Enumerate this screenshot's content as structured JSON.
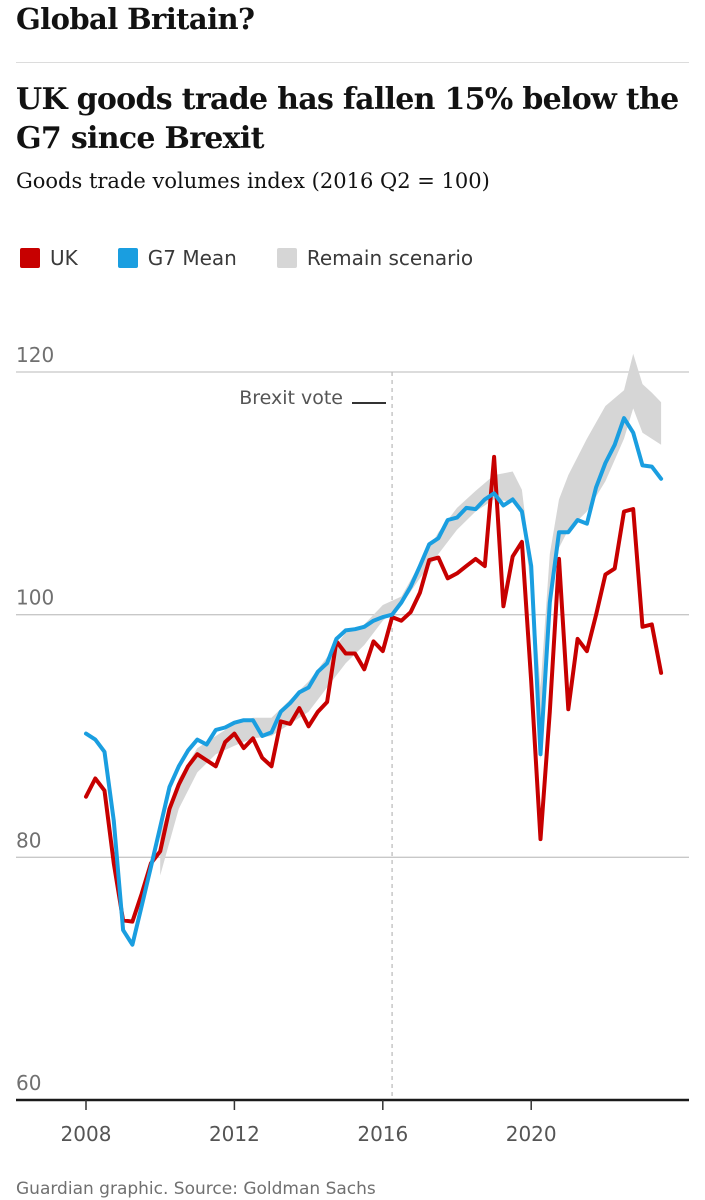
{
  "header": {
    "kicker": "Global Britain?",
    "title": "UK goods trade has fallen 15% below the G7 since Brexit",
    "subtitle": "Goods trade volumes index (2016 Q2 = 100)"
  },
  "legend": [
    {
      "label": "UK",
      "color": "#c70000"
    },
    {
      "label": "G7 Mean",
      "color": "#1a9ee0"
    },
    {
      "label": "Remain scenario",
      "color": "#d6d6d6"
    }
  ],
  "footer": "Guardian graphic. Source: Goldman Sachs",
  "chart_data": {
    "type": "line",
    "ylim": [
      60,
      120
    ],
    "xlim": [
      2007.5,
      2023.6
    ],
    "y_ticks": [
      {
        "value": 60,
        "label": "60"
      },
      {
        "value": 80,
        "label": "80"
      },
      {
        "value": 100,
        "label": "100"
      },
      {
        "value": 120,
        "label": "120"
      }
    ],
    "x_ticks": [
      {
        "value": 2008,
        "label": "2008"
      },
      {
        "value": 2012,
        "label": "2012"
      },
      {
        "value": 2016,
        "label": "2016"
      },
      {
        "value": 2020,
        "label": "2020"
      }
    ],
    "annotation": {
      "label": "Brexit vote",
      "x": 2016.25
    },
    "series": [
      {
        "name": "UK",
        "color": "#c70000",
        "points": [
          [
            2008.0,
            85.0
          ],
          [
            2008.25,
            86.5
          ],
          [
            2008.5,
            85.5
          ],
          [
            2008.75,
            79.5
          ],
          [
            2009.0,
            74.8
          ],
          [
            2009.25,
            74.7
          ],
          [
            2009.5,
            77.0
          ],
          [
            2009.75,
            79.5
          ],
          [
            2010.0,
            80.5
          ],
          [
            2010.25,
            84.0
          ],
          [
            2010.5,
            86.0
          ],
          [
            2010.75,
            87.5
          ],
          [
            2011.0,
            88.5
          ],
          [
            2011.25,
            88.0
          ],
          [
            2011.5,
            87.5
          ],
          [
            2011.75,
            89.5
          ],
          [
            2012.0,
            90.2
          ],
          [
            2012.25,
            89.0
          ],
          [
            2012.5,
            89.8
          ],
          [
            2012.75,
            88.2
          ],
          [
            2013.0,
            87.5
          ],
          [
            2013.25,
            91.2
          ],
          [
            2013.5,
            91.0
          ],
          [
            2013.75,
            92.3
          ],
          [
            2014.0,
            90.8
          ],
          [
            2014.25,
            92.0
          ],
          [
            2014.5,
            92.8
          ],
          [
            2014.75,
            97.8
          ],
          [
            2015.0,
            96.8
          ],
          [
            2015.25,
            96.8
          ],
          [
            2015.5,
            95.5
          ],
          [
            2015.75,
            97.8
          ],
          [
            2016.0,
            97.0
          ],
          [
            2016.25,
            99.8
          ],
          [
            2016.5,
            99.5
          ],
          [
            2016.75,
            100.2
          ],
          [
            2017.0,
            101.8
          ],
          [
            2017.25,
            104.5
          ],
          [
            2017.5,
            104.7
          ],
          [
            2017.75,
            103.0
          ],
          [
            2018.0,
            103.4
          ],
          [
            2018.25,
            104.0
          ],
          [
            2018.5,
            104.6
          ],
          [
            2018.75,
            104.0
          ],
          [
            2019.0,
            113.0
          ],
          [
            2019.25,
            100.7
          ],
          [
            2019.5,
            104.8
          ],
          [
            2019.75,
            106.0
          ],
          [
            2020.0,
            94.5
          ],
          [
            2020.25,
            81.5
          ],
          [
            2020.5,
            92.0
          ],
          [
            2020.75,
            104.6
          ],
          [
            2021.0,
            92.2
          ],
          [
            2021.25,
            98.0
          ],
          [
            2021.5,
            97.0
          ],
          [
            2021.75,
            100.0
          ],
          [
            2022.0,
            103.3
          ],
          [
            2022.25,
            103.8
          ],
          [
            2022.5,
            108.5
          ],
          [
            2022.75,
            108.7
          ],
          [
            2023.0,
            99.0
          ],
          [
            2023.25,
            99.2
          ],
          [
            2023.5,
            95.2
          ]
        ]
      },
      {
        "name": "G7 Mean",
        "color": "#1a9ee0",
        "points": [
          [
            2008.0,
            90.2
          ],
          [
            2008.25,
            89.7
          ],
          [
            2008.5,
            88.7
          ],
          [
            2008.75,
            83.0
          ],
          [
            2009.0,
            74.0
          ],
          [
            2009.25,
            72.8
          ],
          [
            2009.5,
            76.0
          ],
          [
            2009.75,
            79.2
          ],
          [
            2010.0,
            82.5
          ],
          [
            2010.25,
            85.8
          ],
          [
            2010.5,
            87.5
          ],
          [
            2010.75,
            88.8
          ],
          [
            2011.0,
            89.7
          ],
          [
            2011.25,
            89.3
          ],
          [
            2011.5,
            90.5
          ],
          [
            2011.75,
            90.7
          ],
          [
            2012.0,
            91.1
          ],
          [
            2012.25,
            91.3
          ],
          [
            2012.5,
            91.3
          ],
          [
            2012.75,
            90.0
          ],
          [
            2013.0,
            90.3
          ],
          [
            2013.25,
            92.0
          ],
          [
            2013.5,
            92.7
          ],
          [
            2013.75,
            93.6
          ],
          [
            2014.0,
            94.0
          ],
          [
            2014.25,
            95.3
          ],
          [
            2014.5,
            96.0
          ],
          [
            2014.75,
            98.0
          ],
          [
            2015.0,
            98.7
          ],
          [
            2015.25,
            98.8
          ],
          [
            2015.5,
            99.0
          ],
          [
            2015.75,
            99.5
          ],
          [
            2016.0,
            99.8
          ],
          [
            2016.25,
            100.0
          ],
          [
            2016.5,
            101.0
          ],
          [
            2016.75,
            102.3
          ],
          [
            2017.0,
            104.0
          ],
          [
            2017.25,
            105.8
          ],
          [
            2017.5,
            106.3
          ],
          [
            2017.75,
            107.8
          ],
          [
            2018.0,
            108.0
          ],
          [
            2018.25,
            108.8
          ],
          [
            2018.5,
            108.7
          ],
          [
            2018.75,
            109.5
          ],
          [
            2019.0,
            110.0
          ],
          [
            2019.25,
            109.0
          ],
          [
            2019.5,
            109.5
          ],
          [
            2019.75,
            108.5
          ],
          [
            2020.0,
            104.0
          ],
          [
            2020.25,
            88.5
          ],
          [
            2020.5,
            101.0
          ],
          [
            2020.75,
            106.8
          ],
          [
            2021.0,
            106.8
          ],
          [
            2021.25,
            107.8
          ],
          [
            2021.5,
            107.5
          ],
          [
            2021.75,
            110.5
          ],
          [
            2022.0,
            112.5
          ],
          [
            2022.25,
            114.0
          ],
          [
            2022.5,
            116.2
          ],
          [
            2022.75,
            115.0
          ],
          [
            2023.0,
            112.3
          ],
          [
            2023.25,
            112.2
          ],
          [
            2023.5,
            111.2
          ]
        ]
      }
    ],
    "remain_band": {
      "name": "Remain scenario",
      "color": "#d6d6d6",
      "upper": [
        [
          2010.0,
          82.0
        ],
        [
          2010.5,
          86.5
        ],
        [
          2011.0,
          89.0
        ],
        [
          2011.5,
          90.0
        ],
        [
          2012.0,
          91.0
        ],
        [
          2012.5,
          91.5
        ],
        [
          2013.0,
          91.5
        ],
        [
          2013.5,
          93.0
        ],
        [
          2014.0,
          94.5
        ],
        [
          2014.5,
          96.5
        ],
        [
          2015.0,
          98.5
        ],
        [
          2015.5,
          99.2
        ],
        [
          2016.0,
          100.8
        ],
        [
          2016.5,
          101.5
        ],
        [
          2017.0,
          104.2
        ],
        [
          2017.5,
          106.8
        ],
        [
          2018.0,
          108.8
        ],
        [
          2018.5,
          110.2
        ],
        [
          2019.0,
          111.5
        ],
        [
          2019.5,
          111.8
        ],
        [
          2019.75,
          110.3
        ],
        [
          2020.0,
          104.0
        ],
        [
          2020.25,
          94.0
        ],
        [
          2020.5,
          105.0
        ],
        [
          2020.75,
          109.5
        ],
        [
          2021.0,
          111.5
        ],
        [
          2021.5,
          114.5
        ],
        [
          2022.0,
          117.2
        ],
        [
          2022.5,
          118.5
        ],
        [
          2022.75,
          121.5
        ],
        [
          2023.0,
          119.0
        ],
        [
          2023.25,
          118.3
        ],
        [
          2023.5,
          117.5
        ]
      ],
      "lower": [
        [
          2010.0,
          78.5
        ],
        [
          2010.5,
          84.0
        ],
        [
          2011.0,
          87.0
        ],
        [
          2011.5,
          88.5
        ],
        [
          2012.0,
          89.2
        ],
        [
          2012.5,
          89.8
        ],
        [
          2013.0,
          90.0
        ],
        [
          2013.5,
          91.0
        ],
        [
          2014.0,
          92.0
        ],
        [
          2014.5,
          94.0
        ],
        [
          2015.0,
          96.0
        ],
        [
          2015.5,
          97.5
        ],
        [
          2016.0,
          99.5
        ],
        [
          2016.5,
          100.8
        ],
        [
          2017.0,
          103.0
        ],
        [
          2017.5,
          105.0
        ],
        [
          2018.0,
          107.0
        ],
        [
          2018.5,
          108.5
        ],
        [
          2019.0,
          109.5
        ],
        [
          2019.5,
          109.3
        ],
        [
          2019.75,
          108.5
        ],
        [
          2020.0,
          102.0
        ],
        [
          2020.25,
          88.0
        ],
        [
          2020.5,
          100.5
        ],
        [
          2020.75,
          105.5
        ],
        [
          2021.0,
          107.0
        ],
        [
          2021.5,
          108.5
        ],
        [
          2022.0,
          111.0
        ],
        [
          2022.5,
          114.5
        ],
        [
          2022.75,
          117.0
        ],
        [
          2023.0,
          115.0
        ],
        [
          2023.25,
          114.5
        ],
        [
          2023.5,
          114.0
        ]
      ]
    }
  }
}
